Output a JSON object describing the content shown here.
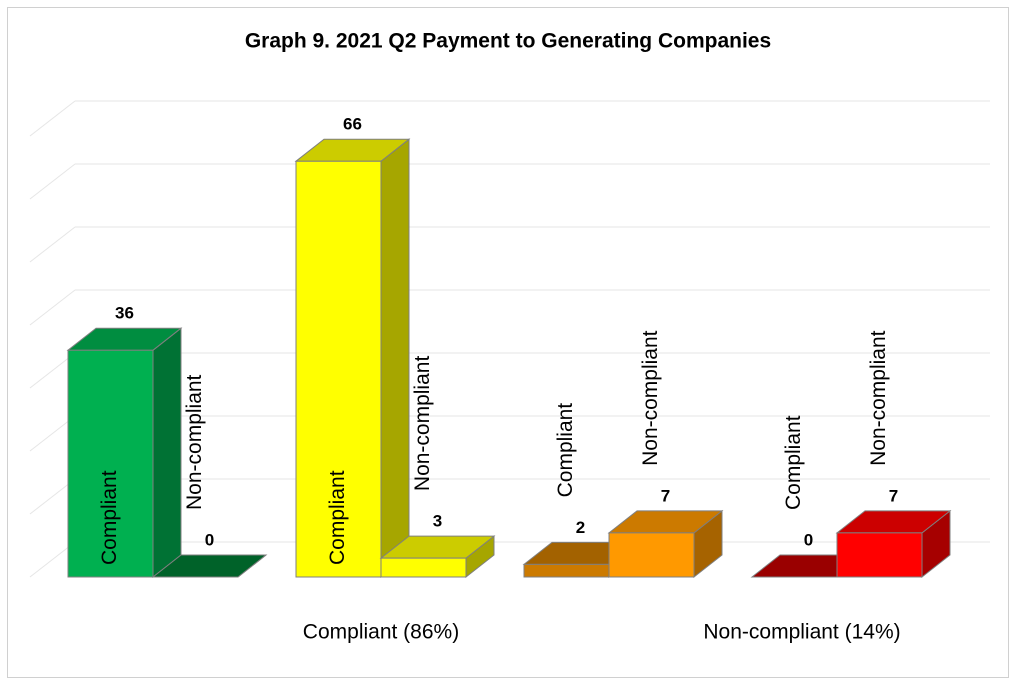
{
  "chart_data": {
    "type": "bar3d",
    "title": "Graph 9. 2021 Q2 Payment to Generating Companies",
    "ylim": [
      0,
      70
    ],
    "yticks": [
      0,
      10,
      20,
      30,
      40,
      50,
      60,
      70
    ],
    "grid": true,
    "clusters": [
      {
        "bars": [
          {
            "label": "Compliant",
            "value": 36,
            "color": "#00b050"
          },
          {
            "label": "Non-compliant",
            "value": 0,
            "color": "#007a33"
          }
        ]
      },
      {
        "bars": [
          {
            "label": "Compliant",
            "value": 66,
            "color": "#ffff00"
          },
          {
            "label": "Non-compliant",
            "value": 3,
            "color": "#ffff00"
          }
        ]
      },
      {
        "bars": [
          {
            "label": "Compliant",
            "value": 2,
            "color": "#cc7a00"
          },
          {
            "label": "Non-compliant",
            "value": 7,
            "color": "#ff9900"
          }
        ]
      },
      {
        "bars": [
          {
            "label": "Compliant",
            "value": 0,
            "color": "#c00000"
          },
          {
            "label": "Non-compliant",
            "value": 7,
            "color": "#ff0000"
          }
        ]
      }
    ],
    "group_labels": [
      "Compliant (86%)",
      "Non-compliant (14%)"
    ]
  }
}
